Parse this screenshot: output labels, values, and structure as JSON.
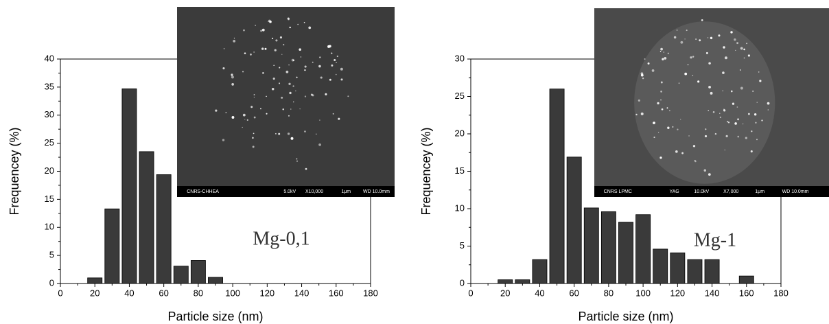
{
  "chart_data": [
    {
      "type": "bar",
      "x": [
        20,
        30,
        40,
        50,
        60,
        70,
        80,
        90
      ],
      "values": [
        1,
        13.3,
        34.7,
        23.5,
        19.4,
        3.1,
        4.1,
        1.1
      ],
      "color": "#3a3a3a",
      "xlim": [
        0,
        180
      ],
      "xticks": [
        0,
        20,
        40,
        60,
        80,
        100,
        120,
        140,
        160,
        180
      ],
      "ylim": [
        0,
        40
      ],
      "yticks": [
        0,
        5,
        10,
        15,
        20,
        25,
        30,
        35,
        40
      ],
      "xlabel": "Particle size (nm)",
      "ylabel": "Frequencey (%)",
      "annotation": "Mg-0,1",
      "inset_labels": [
        "CNRS-CHHEA",
        "5.0kV",
        "X10,000",
        "1μm",
        "WD 10.0mm"
      ]
    },
    {
      "type": "bar",
      "x": [
        20,
        30,
        40,
        50,
        60,
        70,
        80,
        90,
        100,
        110,
        120,
        130,
        140,
        160
      ],
      "values": [
        0.5,
        0.5,
        3.2,
        26,
        16.9,
        10.1,
        9.6,
        8.2,
        9.2,
        4.6,
        4.1,
        3.2,
        3.2,
        1
      ],
      "color": "#3a3a3a",
      "xlim": [
        0,
        180
      ],
      "xticks": [
        0,
        20,
        40,
        60,
        80,
        100,
        120,
        140,
        160,
        180
      ],
      "ylim": [
        0,
        30
      ],
      "yticks": [
        0,
        5,
        10,
        15,
        20,
        25,
        30
      ],
      "xlabel": "Particle size (nm)",
      "ylabel": "Frequencey (%)",
      "annotation": "Mg-1",
      "inset_labels": [
        "CNRS LPMC",
        "YAG",
        "10.0kV",
        "X7,000",
        "1μm",
        "WD 10.0mm"
      ]
    }
  ]
}
